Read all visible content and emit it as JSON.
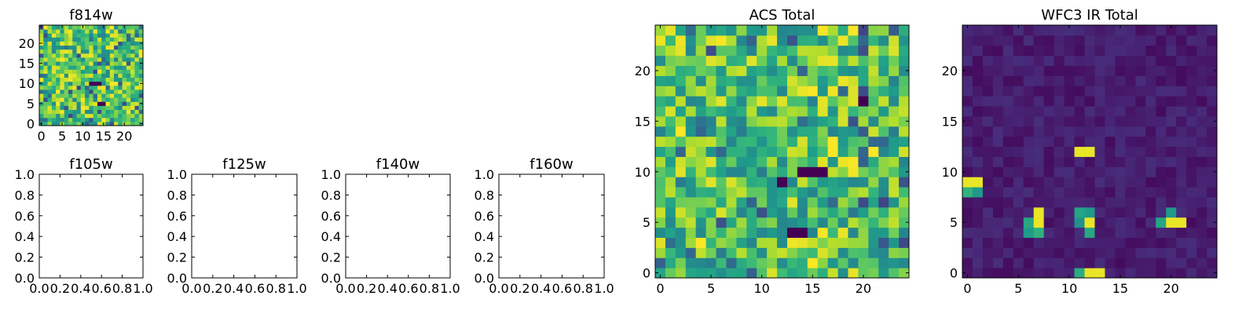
{
  "colormap": "viridis",
  "colors": {
    "axis": "#000000",
    "background": "#ffffff"
  },
  "chart_data": [
    {
      "type": "heatmap",
      "title": "f814w",
      "xlim": [
        0,
        24
      ],
      "ylim": [
        0,
        24
      ],
      "xticks": [
        "0",
        "5",
        "10",
        "15",
        "20"
      ],
      "yticks": [
        "0",
        "5",
        "10",
        "15",
        "20"
      ],
      "grid": 25,
      "values": "random noise (mostly high values, a few dark pixels)",
      "dark_pixels": [
        [
          12,
          10
        ],
        [
          13,
          10
        ],
        [
          14,
          10
        ],
        [
          14,
          5
        ],
        [
          15,
          5
        ]
      ]
    },
    {
      "type": "heatmap",
      "title": "f105w",
      "xlim": [
        0,
        1
      ],
      "ylim": [
        0,
        1
      ],
      "xticks": [
        "0.0",
        "0.2",
        "0.4",
        "0.6",
        "0.8",
        "1.0"
      ],
      "yticks": [
        "0.0",
        "0.2",
        "0.4",
        "0.6",
        "0.8",
        "1.0"
      ],
      "values": []
    },
    {
      "type": "heatmap",
      "title": "f125w",
      "xlim": [
        0,
        1
      ],
      "ylim": [
        0,
        1
      ],
      "xticks": [
        "0.0",
        "0.2",
        "0.4",
        "0.6",
        "0.8",
        "1.0"
      ],
      "yticks": [
        "0.0",
        "0.2",
        "0.4",
        "0.6",
        "0.8",
        "1.0"
      ],
      "values": []
    },
    {
      "type": "heatmap",
      "title": "f140w",
      "xlim": [
        0,
        1
      ],
      "ylim": [
        0,
        1
      ],
      "xticks": [
        "0.0",
        "0.2",
        "0.4",
        "0.6",
        "0.8",
        "1.0"
      ],
      "yticks": [
        "0.0",
        "0.2",
        "0.4",
        "0.6",
        "0.8",
        "1.0"
      ],
      "values": []
    },
    {
      "type": "heatmap",
      "title": "f160w",
      "xlim": [
        0,
        1
      ],
      "ylim": [
        0,
        1
      ],
      "xticks": [
        "0.0",
        "0.2",
        "0.4",
        "0.6",
        "0.8",
        "1.0"
      ],
      "yticks": [
        "0.0",
        "0.2",
        "0.4",
        "0.6",
        "0.8",
        "1.0"
      ],
      "values": []
    },
    {
      "type": "heatmap",
      "title": "ACS Total",
      "xlim": [
        0,
        24
      ],
      "ylim": [
        0,
        24
      ],
      "xticks": [
        "0",
        "5",
        "10",
        "15",
        "20"
      ],
      "yticks": [
        "0",
        "5",
        "10",
        "15",
        "20"
      ],
      "grid": 25,
      "values": "random noise (mostly high values, a few dark pixels)",
      "dark_pixels": [
        [
          14,
          10
        ],
        [
          15,
          10
        ],
        [
          16,
          10
        ],
        [
          13,
          4
        ],
        [
          14,
          4
        ],
        [
          12,
          9
        ],
        [
          20,
          17
        ]
      ]
    },
    {
      "type": "heatmap",
      "title": "WFC3 IR Total",
      "xlim": [
        0,
        24
      ],
      "ylim": [
        0,
        24
      ],
      "xticks": [
        "0",
        "5",
        "10",
        "15",
        "20"
      ],
      "yticks": [
        "0",
        "5",
        "10",
        "15",
        "20"
      ],
      "grid": 25,
      "values": "low background with bright compact sources",
      "bright_pixels": [
        [
          11,
          12
        ],
        [
          12,
          12
        ],
        [
          0,
          9
        ],
        [
          1,
          9
        ],
        [
          7,
          5
        ],
        [
          7,
          6
        ],
        [
          12,
          5
        ],
        [
          20,
          5
        ],
        [
          21,
          5
        ],
        [
          12,
          0
        ],
        [
          13,
          0
        ]
      ],
      "medium_pixels": [
        [
          0,
          8
        ],
        [
          1,
          8
        ],
        [
          6,
          5
        ],
        [
          6,
          4
        ],
        [
          7,
          4
        ],
        [
          11,
          5
        ],
        [
          12,
          4
        ],
        [
          19,
          5
        ],
        [
          20,
          6
        ],
        [
          11,
          0
        ],
        [
          11,
          6
        ],
        [
          12,
          6
        ]
      ]
    }
  ]
}
